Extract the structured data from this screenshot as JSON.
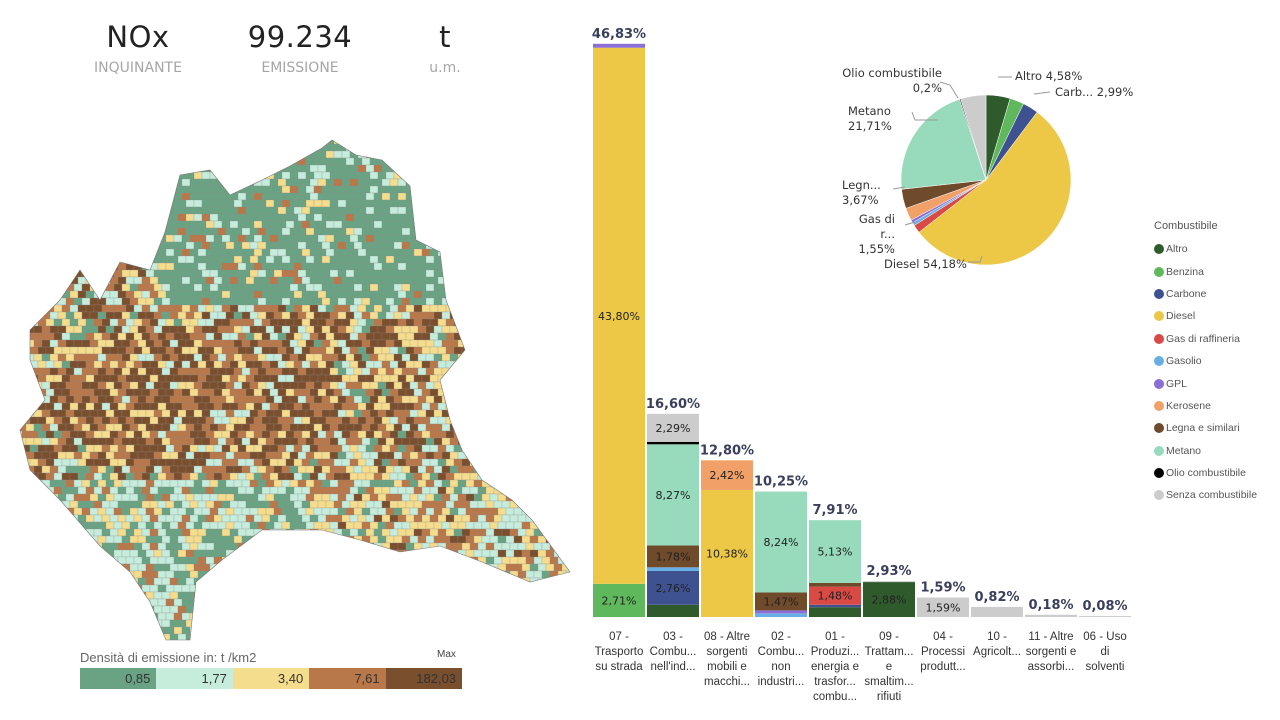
{
  "kpis": [
    {
      "value": "NOx",
      "label": "INQUINANTE"
    },
    {
      "value": "99.234",
      "label": "EMISSIONE"
    },
    {
      "value": "t",
      "label": "u.m."
    }
  ],
  "map": {
    "legend_title": "Densità di emissione in:  t /km2",
    "max_label": "Max",
    "classes": [
      {
        "value": "0,85",
        "color": "#6aa383"
      },
      {
        "value": "1,77",
        "color": "#c6ecdc"
      },
      {
        "value": "3,40",
        "color": "#f5dd8e"
      },
      {
        "value": "7,61",
        "color": "#b9784a"
      },
      {
        "value": "182,03",
        "color": "#7a4f2e"
      }
    ]
  },
  "fuels": [
    {
      "name": "Altro",
      "color": "#2f5b2c"
    },
    {
      "name": "Benzina",
      "color": "#5fb95c"
    },
    {
      "name": "Carbone",
      "color": "#3e5191"
    },
    {
      "name": "Diesel",
      "color": "#ecc846"
    },
    {
      "name": "Gas di raffineria",
      "color": "#d94a45"
    },
    {
      "name": "Gasolio",
      "color": "#6aaee6"
    },
    {
      "name": "GPL",
      "color": "#8c6fd6"
    },
    {
      "name": "Kerosene",
      "color": "#f1a068"
    },
    {
      "name": "Legna e similari",
      "color": "#6f4a2b"
    },
    {
      "name": "Metano",
      "color": "#97dbbc"
    },
    {
      "name": "Olio combustibile",
      "color": "#000000"
    },
    {
      "name": "Senza combustibile",
      "color": "#cccccc"
    }
  ],
  "legend_title": "Combustibile",
  "chart_data": [
    {
      "type": "bar",
      "stacked": true,
      "categories": [
        "07 - Trasporto su strada",
        "03 - Combu... nell'ind...",
        "08 - Altre sorgenti mobili e macchi...",
        "02 - Combu... non industri...",
        "01 - Produzi... energia e trasfor... combu...",
        "09 - Trattam... e smaltim... rifiuti",
        "04 - Processi produtt...",
        "10 - Agricolt...",
        "11 - Altre sorgenti e assorbi...",
        "06 - Uso di solventi"
      ],
      "totals": [
        "46,83%",
        "16,60%",
        "12,80%",
        "10,25%",
        "7,91%",
        "2,93%",
        "1,59%",
        "0,82%",
        "0,18%",
        "0,08%"
      ],
      "total_values": [
        46.83,
        16.6,
        12.8,
        10.25,
        7.91,
        2.93,
        1.59,
        0.82,
        0.18,
        0.08
      ],
      "segments": [
        [
          {
            "fuel": "Benzina",
            "value": 2.71,
            "label": "2,71%"
          },
          {
            "fuel": "Diesel",
            "value": 43.8,
            "label": "43,80%"
          },
          {
            "fuel": "GPL",
            "value": 0.32
          }
        ],
        [
          {
            "fuel": "Altro",
            "value": 1.0
          },
          {
            "fuel": "Carbone",
            "value": 2.76,
            "label": "2,76%"
          },
          {
            "fuel": "Gasolio",
            "value": 0.3
          },
          {
            "fuel": "Legna e similari",
            "value": 1.78,
            "label": "1,78%"
          },
          {
            "fuel": "Metano",
            "value": 8.27,
            "label": "8,27%"
          },
          {
            "fuel": "Olio combustibile",
            "value": 0.2
          },
          {
            "fuel": "Senza combustibile",
            "value": 2.29,
            "label": "2,29%"
          }
        ],
        [
          {
            "fuel": "Diesel",
            "value": 10.38,
            "label": "10,38%"
          },
          {
            "fuel": "Kerosene",
            "value": 2.42,
            "label": "2,42%"
          }
        ],
        [
          {
            "fuel": "Gasolio",
            "value": 0.3
          },
          {
            "fuel": "GPL",
            "value": 0.24
          },
          {
            "fuel": "Legna e similari",
            "value": 1.47,
            "label": "1,47%"
          },
          {
            "fuel": "Metano",
            "value": 8.24,
            "label": "8,24%"
          }
        ],
        [
          {
            "fuel": "Altro",
            "value": 0.8
          },
          {
            "fuel": "Carbone",
            "value": 0.2
          },
          {
            "fuel": "Gas di raffineria",
            "value": 1.48,
            "label": "1,48%"
          },
          {
            "fuel": "Legna e similari",
            "value": 0.3
          },
          {
            "fuel": "Metano",
            "value": 5.13,
            "label": "5,13%"
          }
        ],
        [
          {
            "fuel": "Altro",
            "value": 2.88,
            "label": "2,88%"
          },
          {
            "fuel": "Senza combustibile",
            "value": 0.05
          }
        ],
        [
          {
            "fuel": "Senza combustibile",
            "value": 1.59,
            "label": "1,59%"
          }
        ],
        [
          {
            "fuel": "Senza combustibile",
            "value": 0.82
          }
        ],
        [
          {
            "fuel": "Senza combustibile",
            "value": 0.18
          }
        ],
        [
          {
            "fuel": "Senza combustibile",
            "value": 0.08
          }
        ]
      ]
    },
    {
      "type": "pie",
      "slices": [
        {
          "fuel": "Altro",
          "value": 4.58,
          "label": "Altro 4,58%"
        },
        {
          "fuel": "Benzina",
          "value": 2.71
        },
        {
          "fuel": "Carbone",
          "value": 2.99,
          "label": "Carb... 2,99%"
        },
        {
          "fuel": "Diesel",
          "value": 54.18,
          "label": "Diesel 54,18%"
        },
        {
          "fuel": "Gas di raffineria",
          "value": 1.55,
          "label_name": "Gas di r...",
          "label_value": "1,55%"
        },
        {
          "fuel": "Gasolio",
          "value": 0.6
        },
        {
          "fuel": "GPL",
          "value": 0.56
        },
        {
          "fuel": "Kerosene",
          "value": 2.42
        },
        {
          "fuel": "Legna e similari",
          "value": 3.67,
          "label_name": "Legn...",
          "label_value": "3,67%"
        },
        {
          "fuel": "Metano",
          "value": 21.71,
          "label_name": "Metano",
          "label_value": "21,71%"
        },
        {
          "fuel": "Olio combustibile",
          "value": 0.2,
          "label_name": "Olio combustibile",
          "label_value": "0,2%"
        },
        {
          "fuel": "Senza combustibile",
          "value": 4.83
        }
      ]
    }
  ]
}
